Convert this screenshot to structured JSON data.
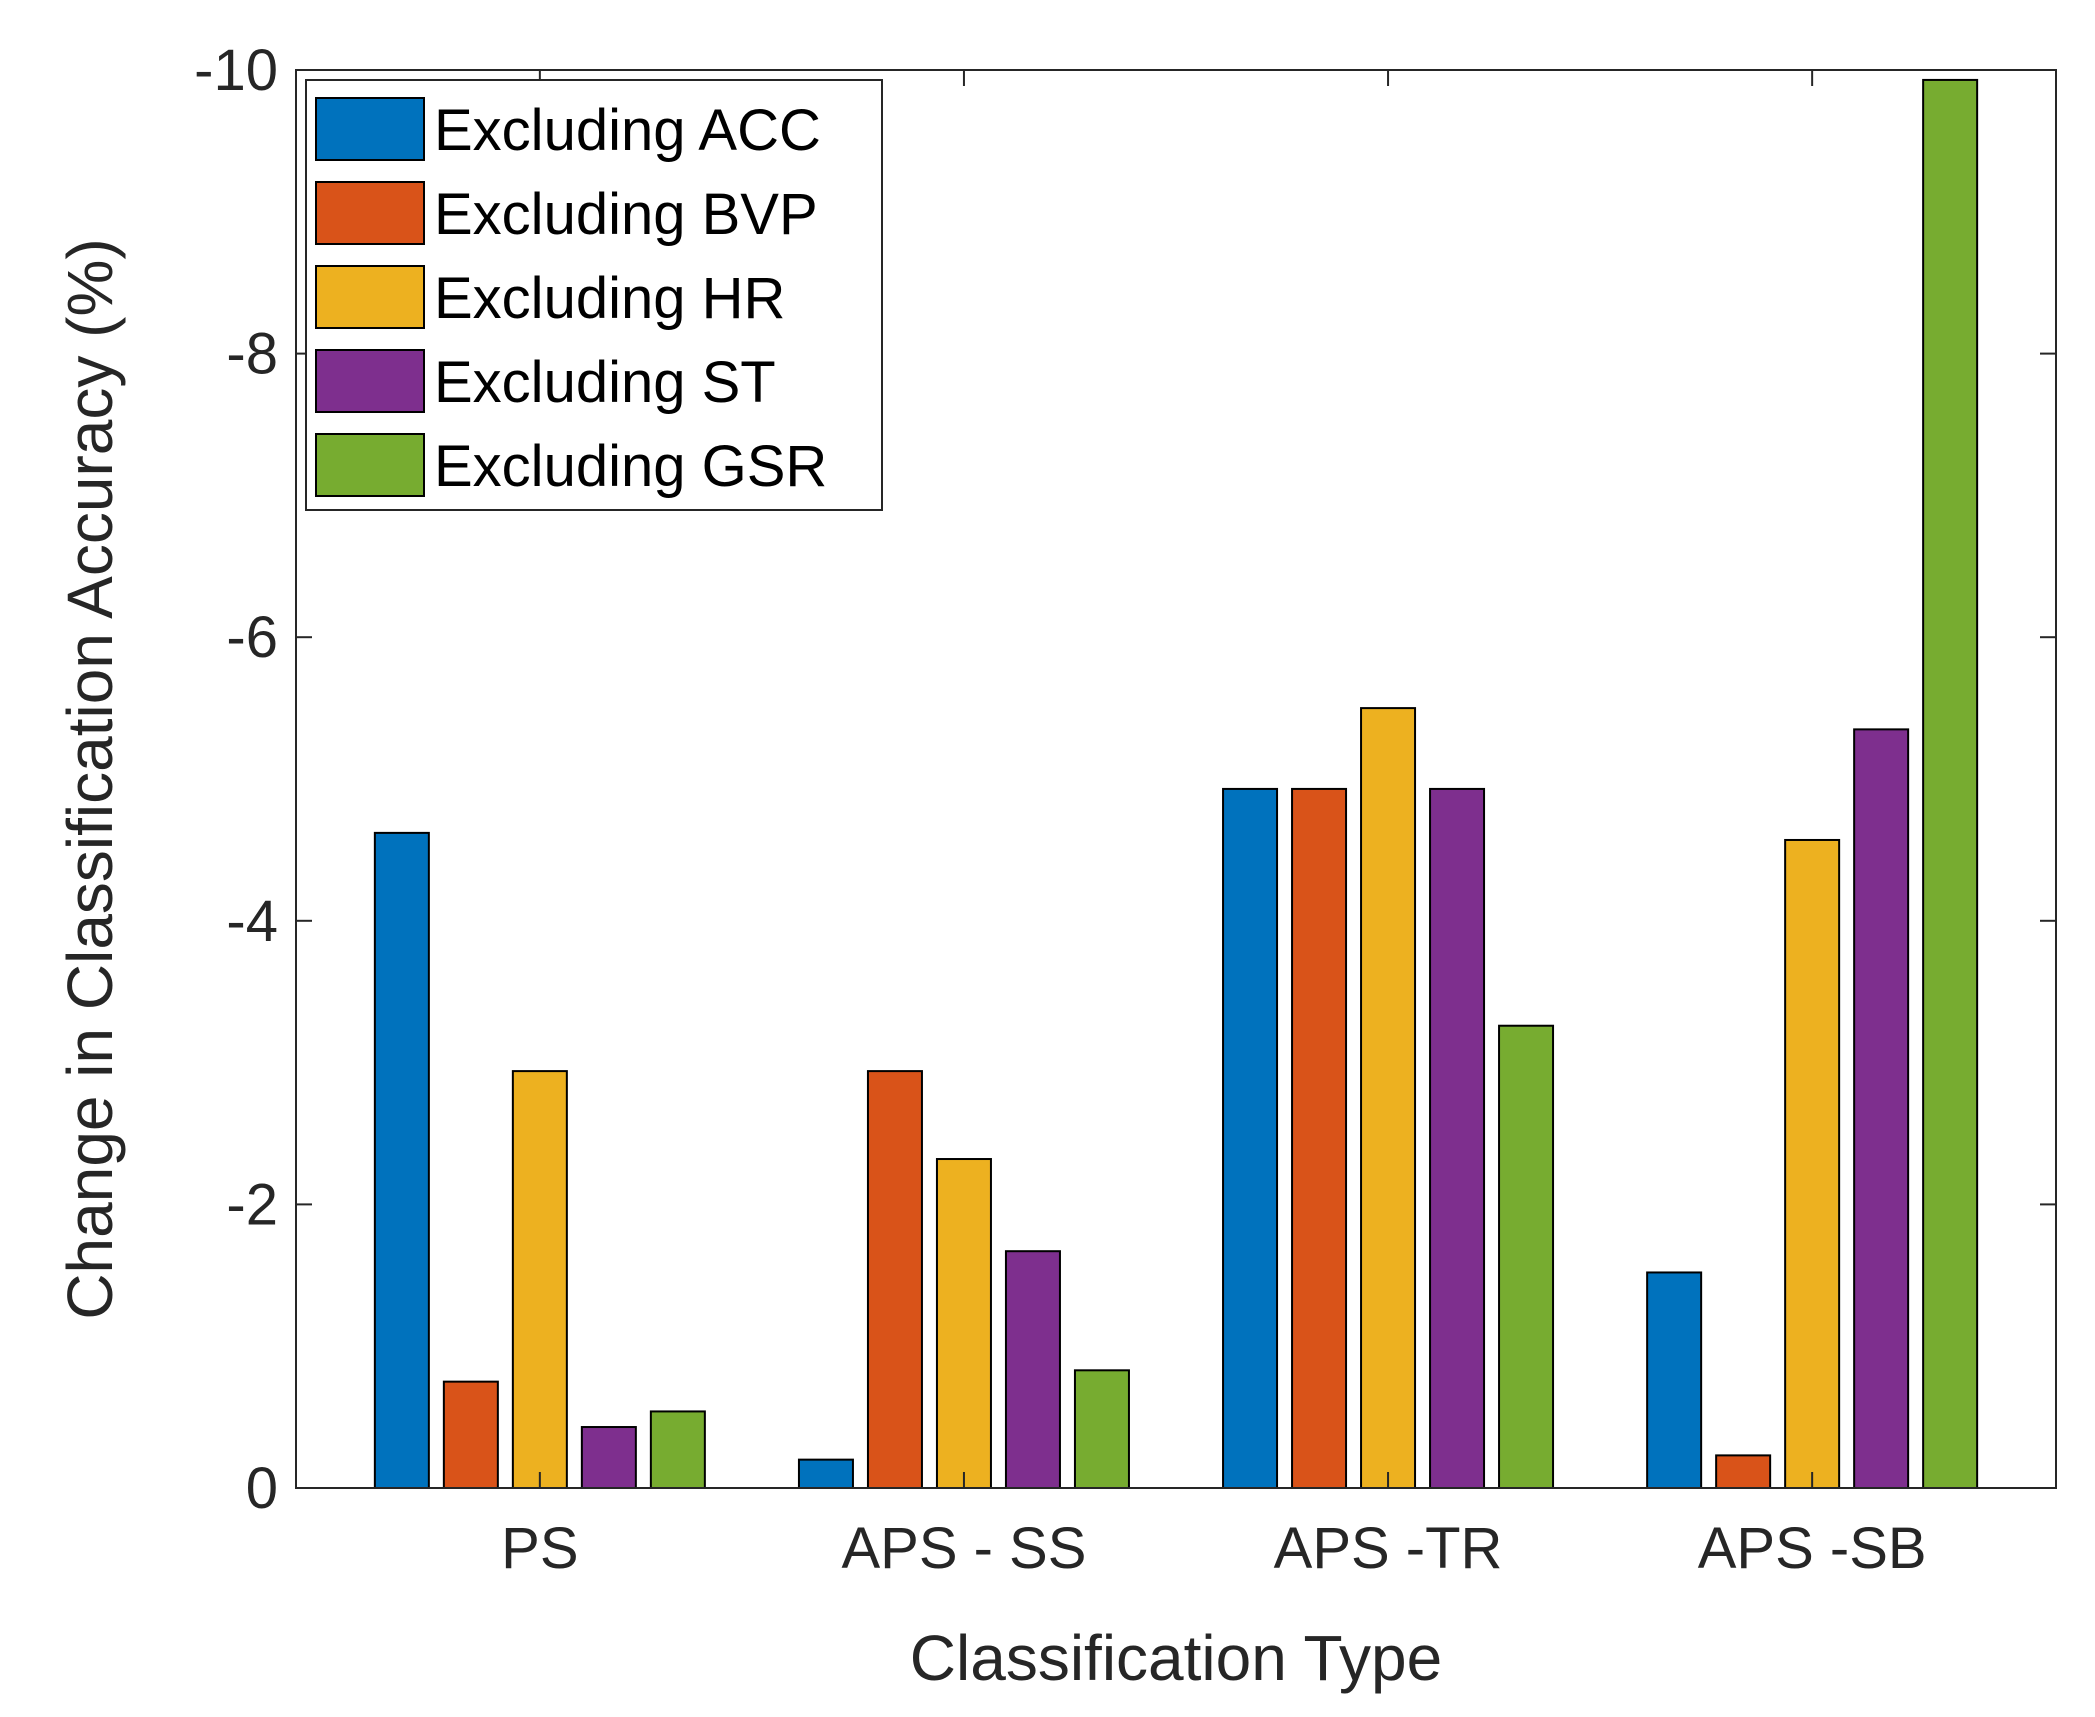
{
  "chart_data": {
    "type": "bar",
    "xlabel": "Classification Type",
    "ylabel": "Change in Classification Accuracy (%)",
    "categories": [
      "PS",
      "APS - SS",
      "APS -TR",
      "APS -SB"
    ],
    "y_axis_reversed": true,
    "ylim": [
      0,
      -10
    ],
    "yticks": [
      0,
      -2,
      -4,
      -6,
      -8,
      -10
    ],
    "grid": false,
    "legend_position": "top-left",
    "series": [
      {
        "name": "Excluding ACC",
        "color": "#0072BD",
        "values": [
          -4.62,
          -0.2,
          -4.93,
          -1.52
        ]
      },
      {
        "name": "Excluding BVP",
        "color": "#D95319",
        "values": [
          -0.75,
          -2.94,
          -4.93,
          -0.23
        ]
      },
      {
        "name": "Excluding HR",
        "color": "#EDB120",
        "values": [
          -2.94,
          -2.32,
          -5.5,
          -4.57
        ]
      },
      {
        "name": "Excluding ST",
        "color": "#7E2F8E",
        "values": [
          -0.43,
          -1.67,
          -4.93,
          -5.35
        ]
      },
      {
        "name": "Excluding GSR",
        "color": "#77AC30",
        "values": [
          -0.54,
          -0.83,
          -3.26,
          -9.93
        ]
      }
    ]
  }
}
